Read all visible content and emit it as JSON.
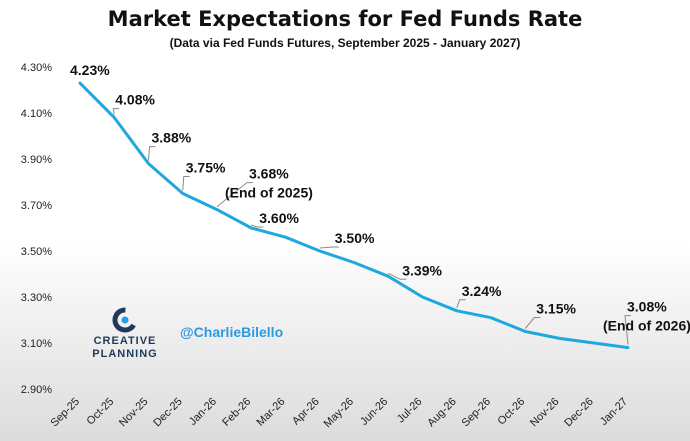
{
  "colors": {
    "line": "#1fa7e0",
    "handle": "#2b9be0",
    "logo_navy": "#1f3a5a"
  },
  "branding": {
    "logo_line1": "CREATIVE",
    "logo_line2": "PLANNING",
    "logo_icon": "creative-planning-logo-icon",
    "handle": "@CharlieBilello"
  },
  "chart_data": {
    "type": "line",
    "title": "Market Expectations for Fed Funds Rate",
    "subtitle": "(Data via Fed Funds Futures, September 2025 - January 2027)",
    "xlabel": "",
    "ylabel": "",
    "ylim": [
      2.9,
      4.3
    ],
    "yticks": [
      "2.90%",
      "3.10%",
      "3.30%",
      "3.50%",
      "3.70%",
      "3.90%",
      "4.10%",
      "4.30%"
    ],
    "yticks_values": [
      2.9,
      3.1,
      3.3,
      3.5,
      3.7,
      3.9,
      4.1,
      4.3
    ],
    "grid": false,
    "legend": "none",
    "categories": [
      "Sep-25",
      "Oct-25",
      "Nov-25",
      "Dec-25",
      "Jan-26",
      "Feb-26",
      "Mar-26",
      "Apr-26",
      "May-26",
      "Jun-26",
      "Jul-26",
      "Aug-26",
      "Sep-26",
      "Oct-26",
      "Nov-26",
      "Dec-26",
      "Jan-27"
    ],
    "values": [
      4.23,
      4.08,
      3.88,
      3.75,
      3.68,
      3.6,
      3.56,
      3.5,
      3.45,
      3.39,
      3.3,
      3.24,
      3.21,
      3.15,
      3.12,
      3.1,
      3.08
    ],
    "data_labels": [
      {
        "index": 0,
        "text": "4.23%"
      },
      {
        "index": 1,
        "text": "4.08%"
      },
      {
        "index": 2,
        "text": "3.88%"
      },
      {
        "index": 3,
        "text": "3.75%"
      },
      {
        "index": 4,
        "text": "3.68%",
        "note": "(End of 2025)"
      },
      {
        "index": 5,
        "text": "3.60%"
      },
      {
        "index": 7,
        "text": "3.50%"
      },
      {
        "index": 9,
        "text": "3.39%"
      },
      {
        "index": 11,
        "text": "3.24%"
      },
      {
        "index": 13,
        "text": "3.15%"
      },
      {
        "index": 16,
        "text": "3.08%",
        "note": "(End of 2026)"
      }
    ]
  }
}
